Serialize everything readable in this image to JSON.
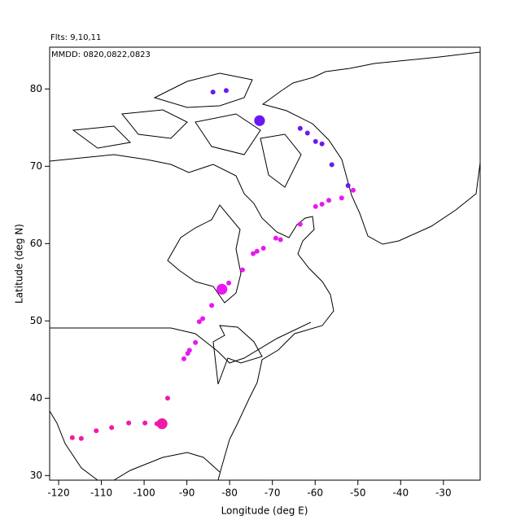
{
  "chart_data": {
    "type": "scatter",
    "title": "Flts: 9,10,11",
    "subtitle": "MMDD: 0820,0822,0823",
    "x_label": "Longitude (deg E)",
    "y_label": "Latitude (deg N)",
    "xlim": [
      -122.1,
      -21.4
    ],
    "ylim": [
      29.4,
      85.4
    ],
    "xticks": [
      -120,
      -110,
      -100,
      -90,
      -80,
      -70,
      -60,
      -50,
      -40,
      -30
    ],
    "yticks": [
      30,
      40,
      50,
      60,
      70,
      80
    ],
    "x": [
      -83.9,
      -80.8,
      -73.0,
      -63.5,
      -61.8,
      -59.9,
      -58.4,
      -56.1,
      -52.3,
      -51.1,
      -53.8,
      -56.8,
      -58.4,
      -59.9,
      -63.5,
      -69.2,
      -68.1,
      -72.1,
      -73.6,
      -74.5,
      -77.0,
      -80.2,
      -81.8,
      -82.3,
      -84.2,
      -86.3,
      -87.1,
      -88.0,
      -89.4,
      -89.8,
      -90.7,
      -94.5,
      -95.8,
      -97.0,
      -99.8,
      -103.6,
      -107.6,
      -111.2,
      -114.7,
      -116.8
    ],
    "values": [
      79.6,
      79.8,
      75.9,
      74.9,
      74.3,
      73.2,
      72.9,
      70.2,
      67.5,
      66.9,
      65.9,
      65.6,
      65.1,
      64.8,
      62.5,
      60.7,
      60.5,
      59.4,
      59.0,
      58.7,
      56.6,
      54.9,
      54.1,
      53.9,
      52.0,
      50.3,
      49.9,
      47.2,
      46.2,
      45.8,
      45.1,
      40.0,
      36.7,
      36.7,
      36.8,
      36.8,
      36.2,
      35.8,
      34.8,
      34.9
    ],
    "sizes": [
      1,
      1,
      2.2,
      1,
      1,
      1,
      1,
      1,
      1,
      1,
      1,
      1,
      1,
      1,
      1,
      1,
      1,
      1,
      1,
      1,
      1,
      1,
      2.2,
      1,
      1,
      1,
      1,
      1,
      1,
      1,
      1,
      1,
      2.2,
      1,
      1,
      1,
      1,
      1,
      1,
      1
    ],
    "colors": [
      "#6a1af0",
      "#6a1af0",
      "#6a1af0",
      "#6a1af0",
      "#6a1af0",
      "#6a1af0",
      "#6a1af0",
      "#6a1af0",
      "#6a1af0",
      "#e818f0",
      "#e818f0",
      "#e818f0",
      "#e818f0",
      "#e818f0",
      "#e818f0",
      "#e818f0",
      "#e818f0",
      "#e818f0",
      "#e818f0",
      "#e818f0",
      "#e818f0",
      "#e818f0",
      "#e818f0",
      "#e818f0",
      "#e818f0",
      "#e818f0",
      "#e818f0",
      "#e818f0",
      "#e818f0",
      "#e818f0",
      "#e818f0",
      "#f01aa8",
      "#f01aa8",
      "#f01aa8",
      "#f01aa8",
      "#f01aa8",
      "#f01aa8",
      "#f01aa8",
      "#f01aa8",
      "#f01aa8"
    ]
  }
}
